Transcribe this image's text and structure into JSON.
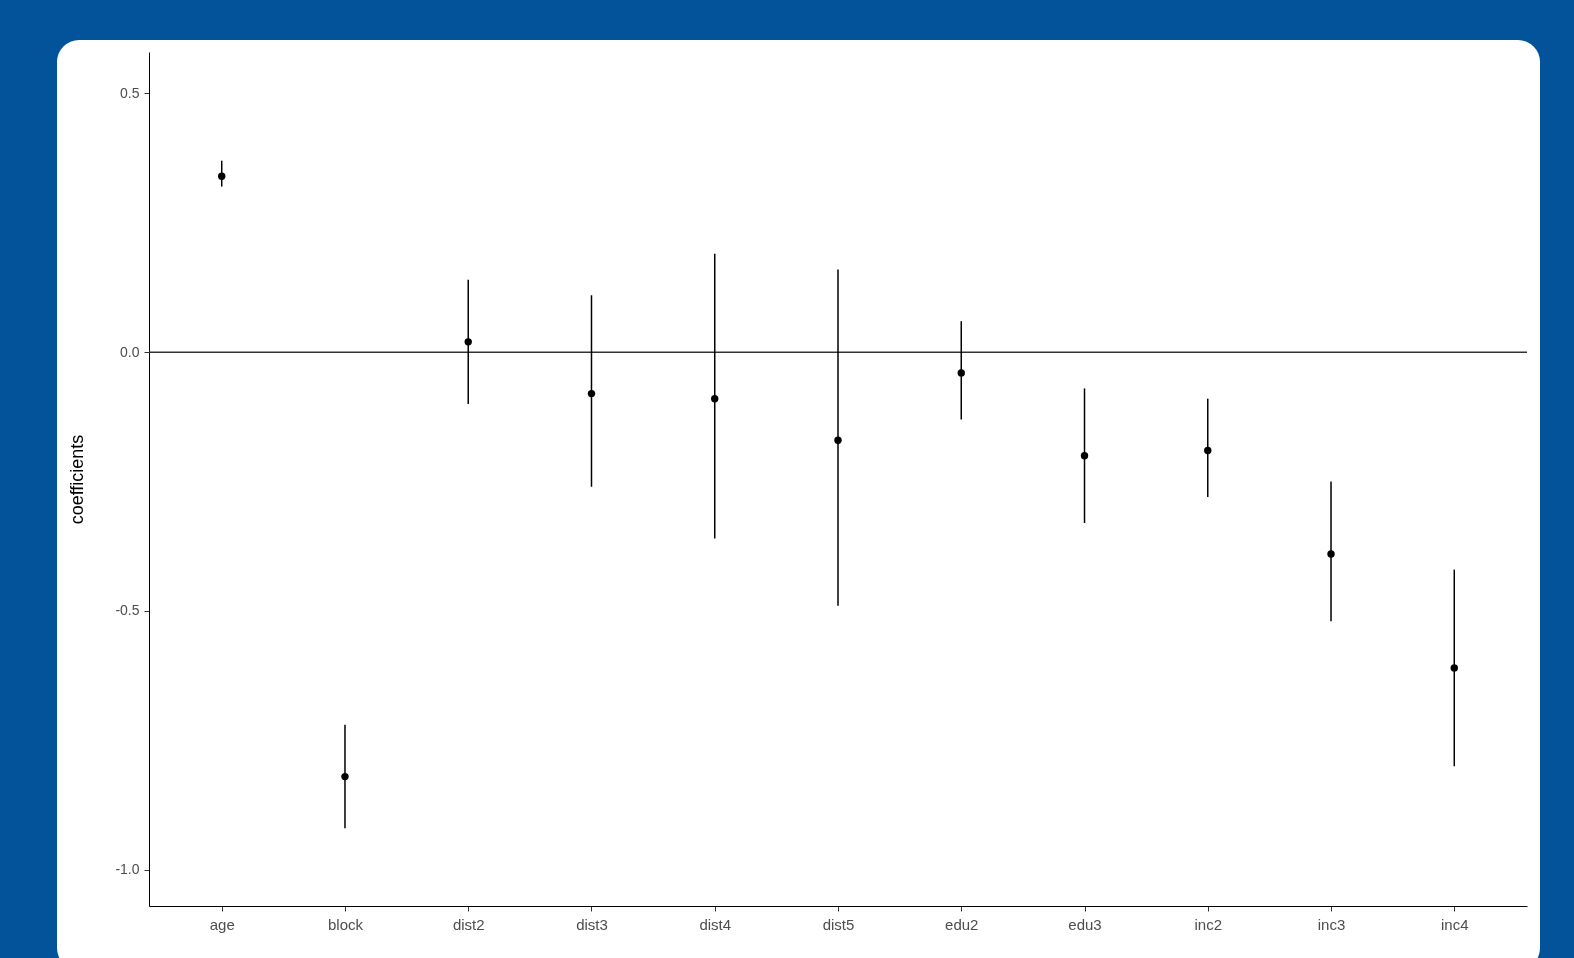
{
  "chart_data": {
    "type": "scatter",
    "ylabel": "coefficients",
    "categories": [
      "age",
      "block",
      "dist2",
      "dist3",
      "dist4",
      "dist5",
      "edu2",
      "edu3",
      "inc2",
      "inc3",
      "inc4"
    ],
    "values": [
      0.34,
      -0.82,
      0.02,
      -0.08,
      -0.09,
      -0.17,
      -0.04,
      -0.2,
      -0.19,
      -0.39,
      -0.61
    ],
    "errors": [
      [
        0.32,
        0.37
      ],
      [
        -0.92,
        -0.72
      ],
      [
        -0.1,
        0.14
      ],
      [
        -0.26,
        0.11
      ],
      [
        -0.36,
        0.19
      ],
      [
        -0.49,
        0.16
      ],
      [
        -0.13,
        0.06
      ],
      [
        -0.33,
        -0.07
      ],
      [
        -0.28,
        -0.09
      ],
      [
        -0.52,
        -0.25
      ],
      [
        -0.8,
        -0.42
      ]
    ],
    "color": "#000000",
    "marker": "circle",
    "ylim": [
      -1.07,
      0.58
    ],
    "yticks": [
      0.5,
      {
        "value": 0,
        "label": "0.0"
      },
      -0.5,
      {
        "value": -1,
        "label": "-1.0"
      }
    ],
    "ref_lines": [
      {
        "axis": "y",
        "value": 0,
        "color": "#333333"
      }
    ],
    "grid": false
  }
}
